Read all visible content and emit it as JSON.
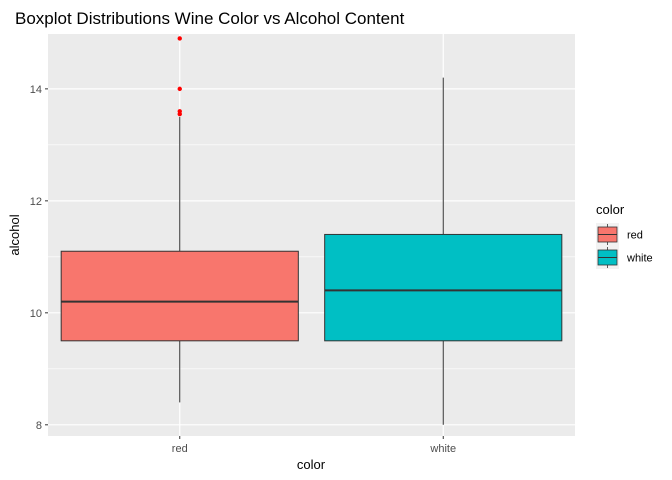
{
  "chart_data": {
    "type": "boxplot",
    "title": "Boxplot Distributions Wine Color vs Alcohol Content",
    "xlabel": "color",
    "ylabel": "alcohol",
    "categories": [
      "red",
      "white"
    ],
    "ylim": [
      7.8,
      14.98
    ],
    "yticks": [
      8,
      10,
      12,
      14
    ],
    "yticks_minor": [
      9,
      11,
      13
    ],
    "grid": true,
    "legend": {
      "title": "color",
      "placement": "right",
      "entries": [
        "red",
        "white"
      ]
    },
    "colors": {
      "red": "#F8766D",
      "white": "#00BFC4",
      "outlier": "#FF0000",
      "panel": "#EBEBEB",
      "grid": "#FFFFFF"
    },
    "boxes": [
      {
        "name": "red",
        "whisker_low": 8.4,
        "q1": 9.5,
        "median": 10.2,
        "q3": 11.1,
        "whisker_high": 13.5,
        "outliers": [
          13.55,
          13.6,
          14.0,
          14.9
        ]
      },
      {
        "name": "white",
        "whisker_low": 8.0,
        "q1": 9.5,
        "median": 10.4,
        "q3": 11.4,
        "whisker_high": 14.2,
        "outliers": []
      }
    ]
  }
}
